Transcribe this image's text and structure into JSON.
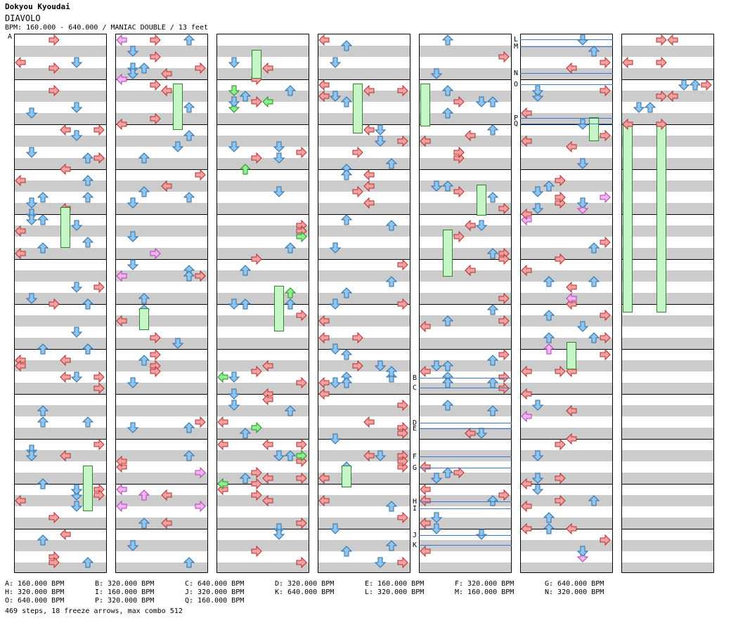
{
  "header": {
    "artist": "Dokyou Kyoudai",
    "song": "DIAVOLO",
    "info": "BPM: 160.000 - 640.000 / MANIAC DOUBLE / 13 feet"
  },
  "colors": {
    "red": "#f4a0a0",
    "blue": "#8ec6f0",
    "pink": "#f4b4f4",
    "green": "#8cf08c",
    "freeze": "#c8f5c8",
    "bpm_line": "#3a78c8"
  },
  "bpm_markers": [
    "A",
    "B",
    "C",
    "D",
    "E",
    "F",
    "G",
    "H",
    "I",
    "J",
    "K",
    "L",
    "M",
    "N",
    "O",
    "P",
    "Q"
  ],
  "legend": [
    [
      "A: 160.000 BPM",
      "B: 320.000 BPM",
      "C: 640.000 BPM",
      "D: 320.000 BPM",
      "E: 160.000 BPM",
      "F: 320.000 BPM",
      "G: 640.000 BPM"
    ],
    [
      "H: 320.000 BPM",
      "I: 160.000 BPM",
      "J: 320.000 BPM",
      "K: 640.000 BPM",
      "L: 320.000 BPM",
      "M: 160.000 BPM",
      "N: 320.000 BPM"
    ],
    [
      "O: 640.000 BPM",
      "P: 320.000 BPM",
      "Q: 160.000 BPM"
    ]
  ],
  "stats": "469 steps, 18 freeze arrows, max combo 512"
}
